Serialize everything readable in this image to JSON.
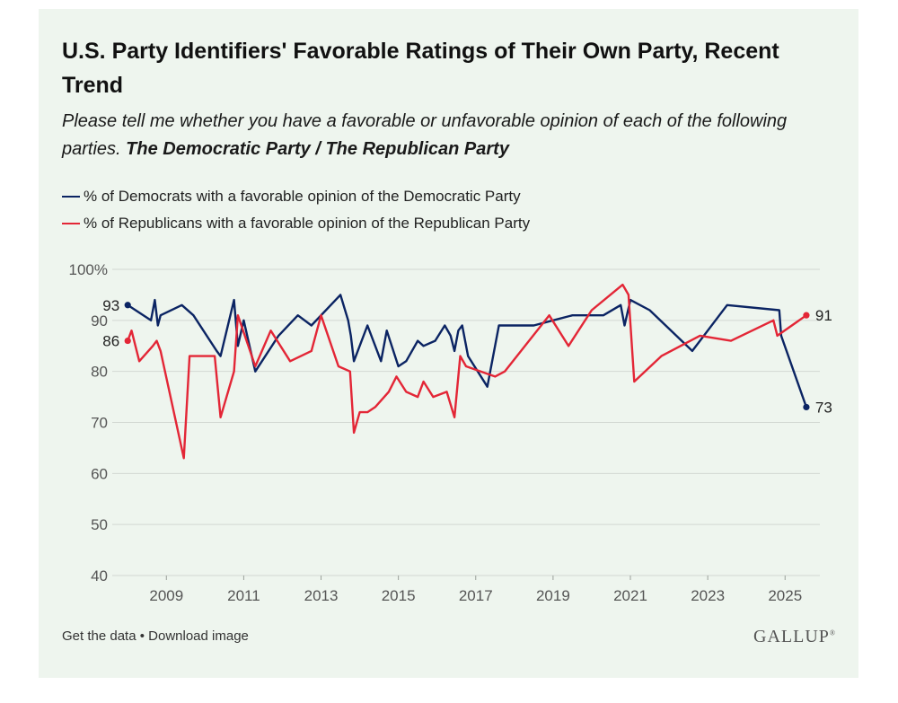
{
  "title": "U.S. Party Identifiers' Favorable Ratings of Their Own Party, Recent Trend",
  "subtitle_main": "Please tell me whether you have a favorable or unfavorable opinion of each of the following parties. ",
  "subtitle_bold": "The Democratic Party / The Republican Party",
  "footer": {
    "get_data": "Get the data",
    "separator": " • ",
    "download": "Download image"
  },
  "logo": {
    "text": "GALLUP",
    "mark": "®"
  },
  "colors": {
    "democrats": "#0b2463",
    "republicans": "#e32636",
    "grid": "#d2d8d2",
    "axis_text": "#555555"
  },
  "chart_data": {
    "type": "line",
    "title": "U.S. Party Identifiers' Favorable Ratings of Their Own Party, Recent Trend",
    "xlabel": "",
    "ylabel": "",
    "ylim": [
      40,
      100
    ],
    "xlim": [
      2007.6,
      2025.9
    ],
    "y_ticks": [
      40,
      50,
      60,
      70,
      80,
      90,
      100
    ],
    "y_tick_labels": [
      "40",
      "50",
      "60",
      "70",
      "80",
      "90",
      "100%"
    ],
    "x_ticks": [
      2009,
      2011,
      2013,
      2015,
      2017,
      2019,
      2021,
      2023,
      2025
    ],
    "x_tick_labels": [
      "2009",
      "2011",
      "2013",
      "2015",
      "2017",
      "2019",
      "2021",
      "2023",
      "2025"
    ],
    "grid": true,
    "legend_position": "top-left",
    "series": [
      {
        "name": "% of Democrats with a favorable opinion of the Democratic Party",
        "color": "#0b2463",
        "x": [
          2008.0,
          2008.6,
          2008.7,
          2008.78,
          2008.85,
          2009.4,
          2009.7,
          2010.3,
          2010.4,
          2010.75,
          2010.85,
          2011.0,
          2011.3,
          2011.9,
          2012.4,
          2012.75,
          2013.5,
          2013.7,
          2013.77,
          2013.85,
          2014.2,
          2014.55,
          2014.7,
          2015.0,
          2015.2,
          2015.5,
          2015.65,
          2015.95,
          2016.2,
          2016.35,
          2016.45,
          2016.55,
          2016.65,
          2016.8,
          2017.3,
          2017.6,
          2018.5,
          2019.0,
          2019.5,
          2020.3,
          2020.75,
          2020.85,
          2021.0,
          2021.5,
          2022.6,
          2023.5,
          2024.85,
          2024.9,
          2025.55
        ],
        "y": [
          93,
          90,
          94,
          89,
          91,
          93,
          91,
          84,
          83,
          94,
          85,
          90,
          80,
          87,
          91,
          89,
          95,
          90,
          87,
          82,
          89,
          82,
          88,
          81,
          82,
          86,
          85,
          86,
          89,
          87,
          84,
          88,
          89,
          83,
          77,
          89,
          89,
          90,
          91,
          91,
          93,
          89,
          94,
          92,
          84,
          93,
          92,
          87,
          73
        ]
      },
      {
        "name": "% of Republicans with a favorable opinion of the Republican Party",
        "color": "#e32636",
        "x": [
          2008.0,
          2008.1,
          2008.3,
          2008.65,
          2008.75,
          2008.85,
          2009.45,
          2009.6,
          2010.25,
          2010.4,
          2010.75,
          2010.85,
          2011.3,
          2011.7,
          2012.2,
          2012.75,
          2013.0,
          2013.45,
          2013.75,
          2013.85,
          2014.0,
          2014.2,
          2014.4,
          2014.75,
          2014.95,
          2015.2,
          2015.5,
          2015.65,
          2015.9,
          2016.25,
          2016.45,
          2016.6,
          2016.75,
          2017.5,
          2017.75,
          2018.9,
          2019.4,
          2020.0,
          2020.8,
          2020.95,
          2021.1,
          2021.8,
          2022.8,
          2023.6,
          2024.7,
          2024.8,
          2025.55
        ],
        "y": [
          86,
          88,
          82,
          85,
          86,
          84,
          63,
          83,
          83,
          71,
          80,
          91,
          81,
          88,
          82,
          84,
          91,
          81,
          80,
          68,
          72,
          72,
          73,
          76,
          79,
          76,
          75,
          78,
          75,
          76,
          71,
          83,
          81,
          79,
          80,
          91,
          85,
          92,
          97,
          95,
          78,
          83,
          87,
          86,
          90,
          87,
          91
        ]
      }
    ],
    "annotations": [
      {
        "series": 0,
        "position": "start",
        "label": "93"
      },
      {
        "series": 1,
        "position": "start",
        "label": "86"
      },
      {
        "series": 1,
        "position": "end",
        "label": "91"
      },
      {
        "series": 0,
        "position": "end",
        "label": "73"
      }
    ]
  }
}
